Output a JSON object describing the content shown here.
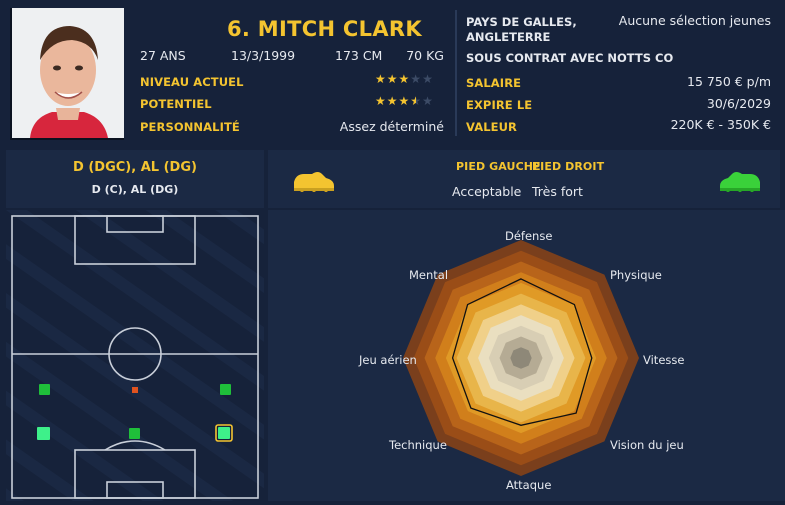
{
  "player": {
    "name": "6. MITCH CLARK",
    "age": "27 ANS",
    "dob": "13/3/1999",
    "height": "173 CM",
    "weight": "70 KG",
    "current_ability_label": "NIVEAU ACTUEL",
    "potential_label": "POTENTIEL",
    "personality_label": "PERSONNALITÉ",
    "personality_value": "Assez déterminé",
    "current_ability_stars": 3,
    "potential_stars": 3.5
  },
  "club": {
    "nationality_line1": "PAYS DE GALLES,",
    "nationality_line2": "ANGLETERRE",
    "youth_caps": "Aucune sélection jeunes",
    "contract": "SOUS CONTRAT AVEC NOTTS CO",
    "salary_label": "SALAIRE",
    "salary_value": "15 750 € p/m",
    "expires_label": "EXPIRE LE",
    "expires_value": "30/6/2029",
    "value_label": "VALEUR",
    "value_value": "220K € - 350K €"
  },
  "positions": {
    "primary": "D (DGC), AL (DG)",
    "secondary": "D (C), AL (DG)"
  },
  "feet": {
    "left_label": "PIED GAUCHE",
    "left_value": "Acceptable",
    "right_label": "PIED DROIT",
    "right_value": "Très fort",
    "left_icon": "boot-icon",
    "right_icon": "boot-icon",
    "left_color": "#f4c430",
    "right_color": "#3ad13a"
  },
  "radar": {
    "axes": [
      "Défense",
      "Physique",
      "Vitesse",
      "Vision du jeu",
      "Attaque",
      "Technique",
      "Jeu aérien",
      "Mental"
    ],
    "values": [
      0.67,
      0.64,
      0.6,
      0.66,
      0.57,
      0.6,
      0.58,
      0.64
    ],
    "colors": [
      "#7a3f1c",
      "#9a4d17",
      "#b8641a",
      "#d17f1b",
      "#e09a26",
      "#e8b54a",
      "#f0d089",
      "#eadfc0",
      "#d8ceb4",
      "#b5ab94",
      "#8e8878"
    ]
  }
}
